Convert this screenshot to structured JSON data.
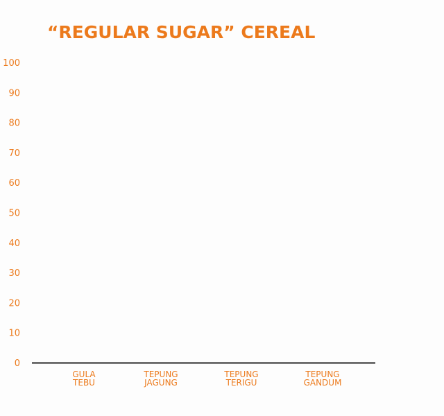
{
  "chart_data": {
    "type": "bar",
    "title": "“REGULAR SUGAR” CEREAL",
    "xlabel": "",
    "ylabel": "",
    "categories": [
      [
        "GULA",
        "TEBU"
      ],
      [
        "TEPUNG",
        "JAGUNG"
      ],
      [
        "TEPUNG",
        "TERIGU"
      ],
      [
        "TEPUNG",
        "GANDUM"
      ]
    ],
    "values": [
      0,
      0,
      0,
      0
    ],
    "ylim": [
      0,
      100
    ],
    "yticks": [
      "0",
      "10",
      "20",
      "30",
      "40",
      "50",
      "60",
      "70",
      "80",
      "90",
      "100"
    ],
    "grid": false,
    "accent_color": "#ec7a1c",
    "axis_color": "#222222",
    "bar_color": "#ec7a1c"
  }
}
